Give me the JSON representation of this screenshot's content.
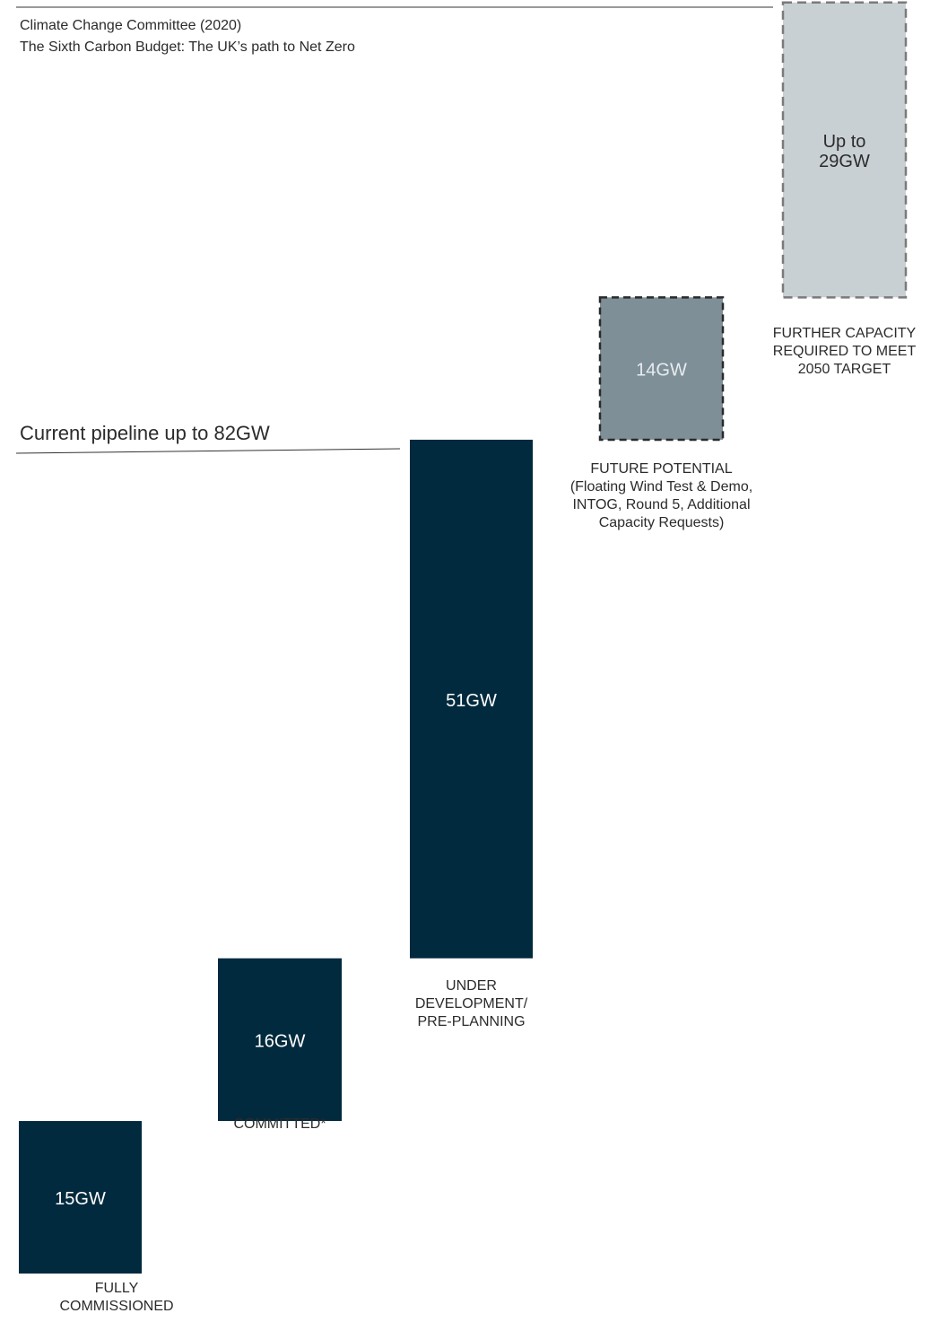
{
  "source": {
    "line1": "Climate Change Committee (2020)",
    "line2": "The Sixth Carbon Budget: The UK’s path to Net Zero"
  },
  "pipeline_label": "Current pipeline up to 82GW",
  "colors": {
    "navy": "#022a3e",
    "mid_grey": "#7e8f98",
    "light_grey": "#c9d0d4",
    "dash_dark": "#2a2a2a",
    "dash_light": "#7a7a7a",
    "text": "#2b2b2b"
  },
  "chart_data": {
    "type": "bar",
    "subtype": "waterfall",
    "unit": "GW",
    "categories": [
      "FULLY\nCOMMISSIONED",
      "COMMITTED*",
      "UNDER\nDEVELOPMENT/\nPRE-PLANNING",
      "FUTURE POTENTIAL\n(Floating Wind Test & Demo,\nINTOG, Round 5, Additional\nCapacity Requests)",
      "FURTHER CAPACITY\nREQUIRED TO MEET\n2050 TARGET"
    ],
    "values": [
      15,
      16,
      51,
      14,
      29
    ],
    "value_labels": [
      "15GW",
      "16GW",
      "51GW",
      "14GW",
      "Up to\n29GW"
    ],
    "styles": [
      "solid",
      "solid",
      "solid",
      "dashed-dark",
      "dashed-light"
    ],
    "cumulative_annotations": [
      {
        "after_index": 2,
        "total": 82,
        "label": "Current pipeline up to 82GW"
      }
    ]
  }
}
